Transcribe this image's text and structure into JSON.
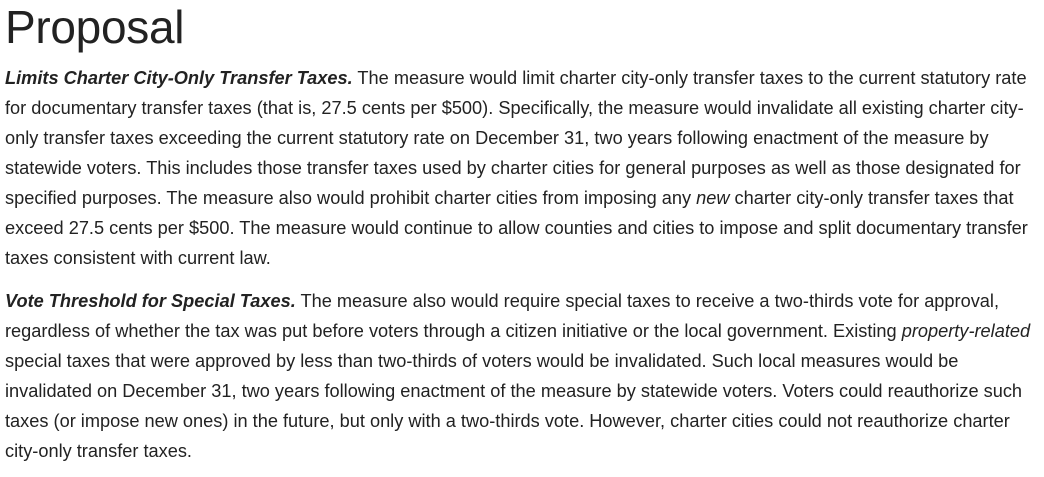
{
  "title": "Proposal",
  "sections": [
    {
      "heading": "Limits Charter City-Only Transfer Taxes.",
      "text_1": " The measure would limit charter city-only transfer taxes to the current statutory rate for documentary transfer taxes (that is, 27.5 cents per $500). Specifically, the measure would invalidate all existing charter city-only transfer taxes exceeding the current statutory rate on December 31, two years following enactment of the measure by statewide voters. This includes those transfer taxes used by charter cities for general purposes as well as those designated for specified purposes. The measure also would prohibit charter cities from imposing any ",
      "emphasis": "new",
      "text_2": " charter city-only transfer taxes that exceed 27.5 cents per $500. The measure would continue to allow counties and cities to impose and split documentary transfer taxes consistent with current law."
    },
    {
      "heading": "Vote Threshold for Special Taxes.",
      "text_1": " The measure also would require special taxes to receive a two-thirds vote for approval, regardless of whether the tax was put before voters through a citizen initiative or the local government. Existing ",
      "emphasis": "property-related",
      "text_2": " special taxes that were approved by less than two-thirds of voters would be invalidated. Such local measures would be invalidated on December 31, two years following enactment of the measure by statewide voters. Voters could reauthorize such taxes (or impose new ones) in the future, but only with a two-thirds vote. However, charter cities could not reauthorize charter city-only transfer taxes."
    }
  ]
}
